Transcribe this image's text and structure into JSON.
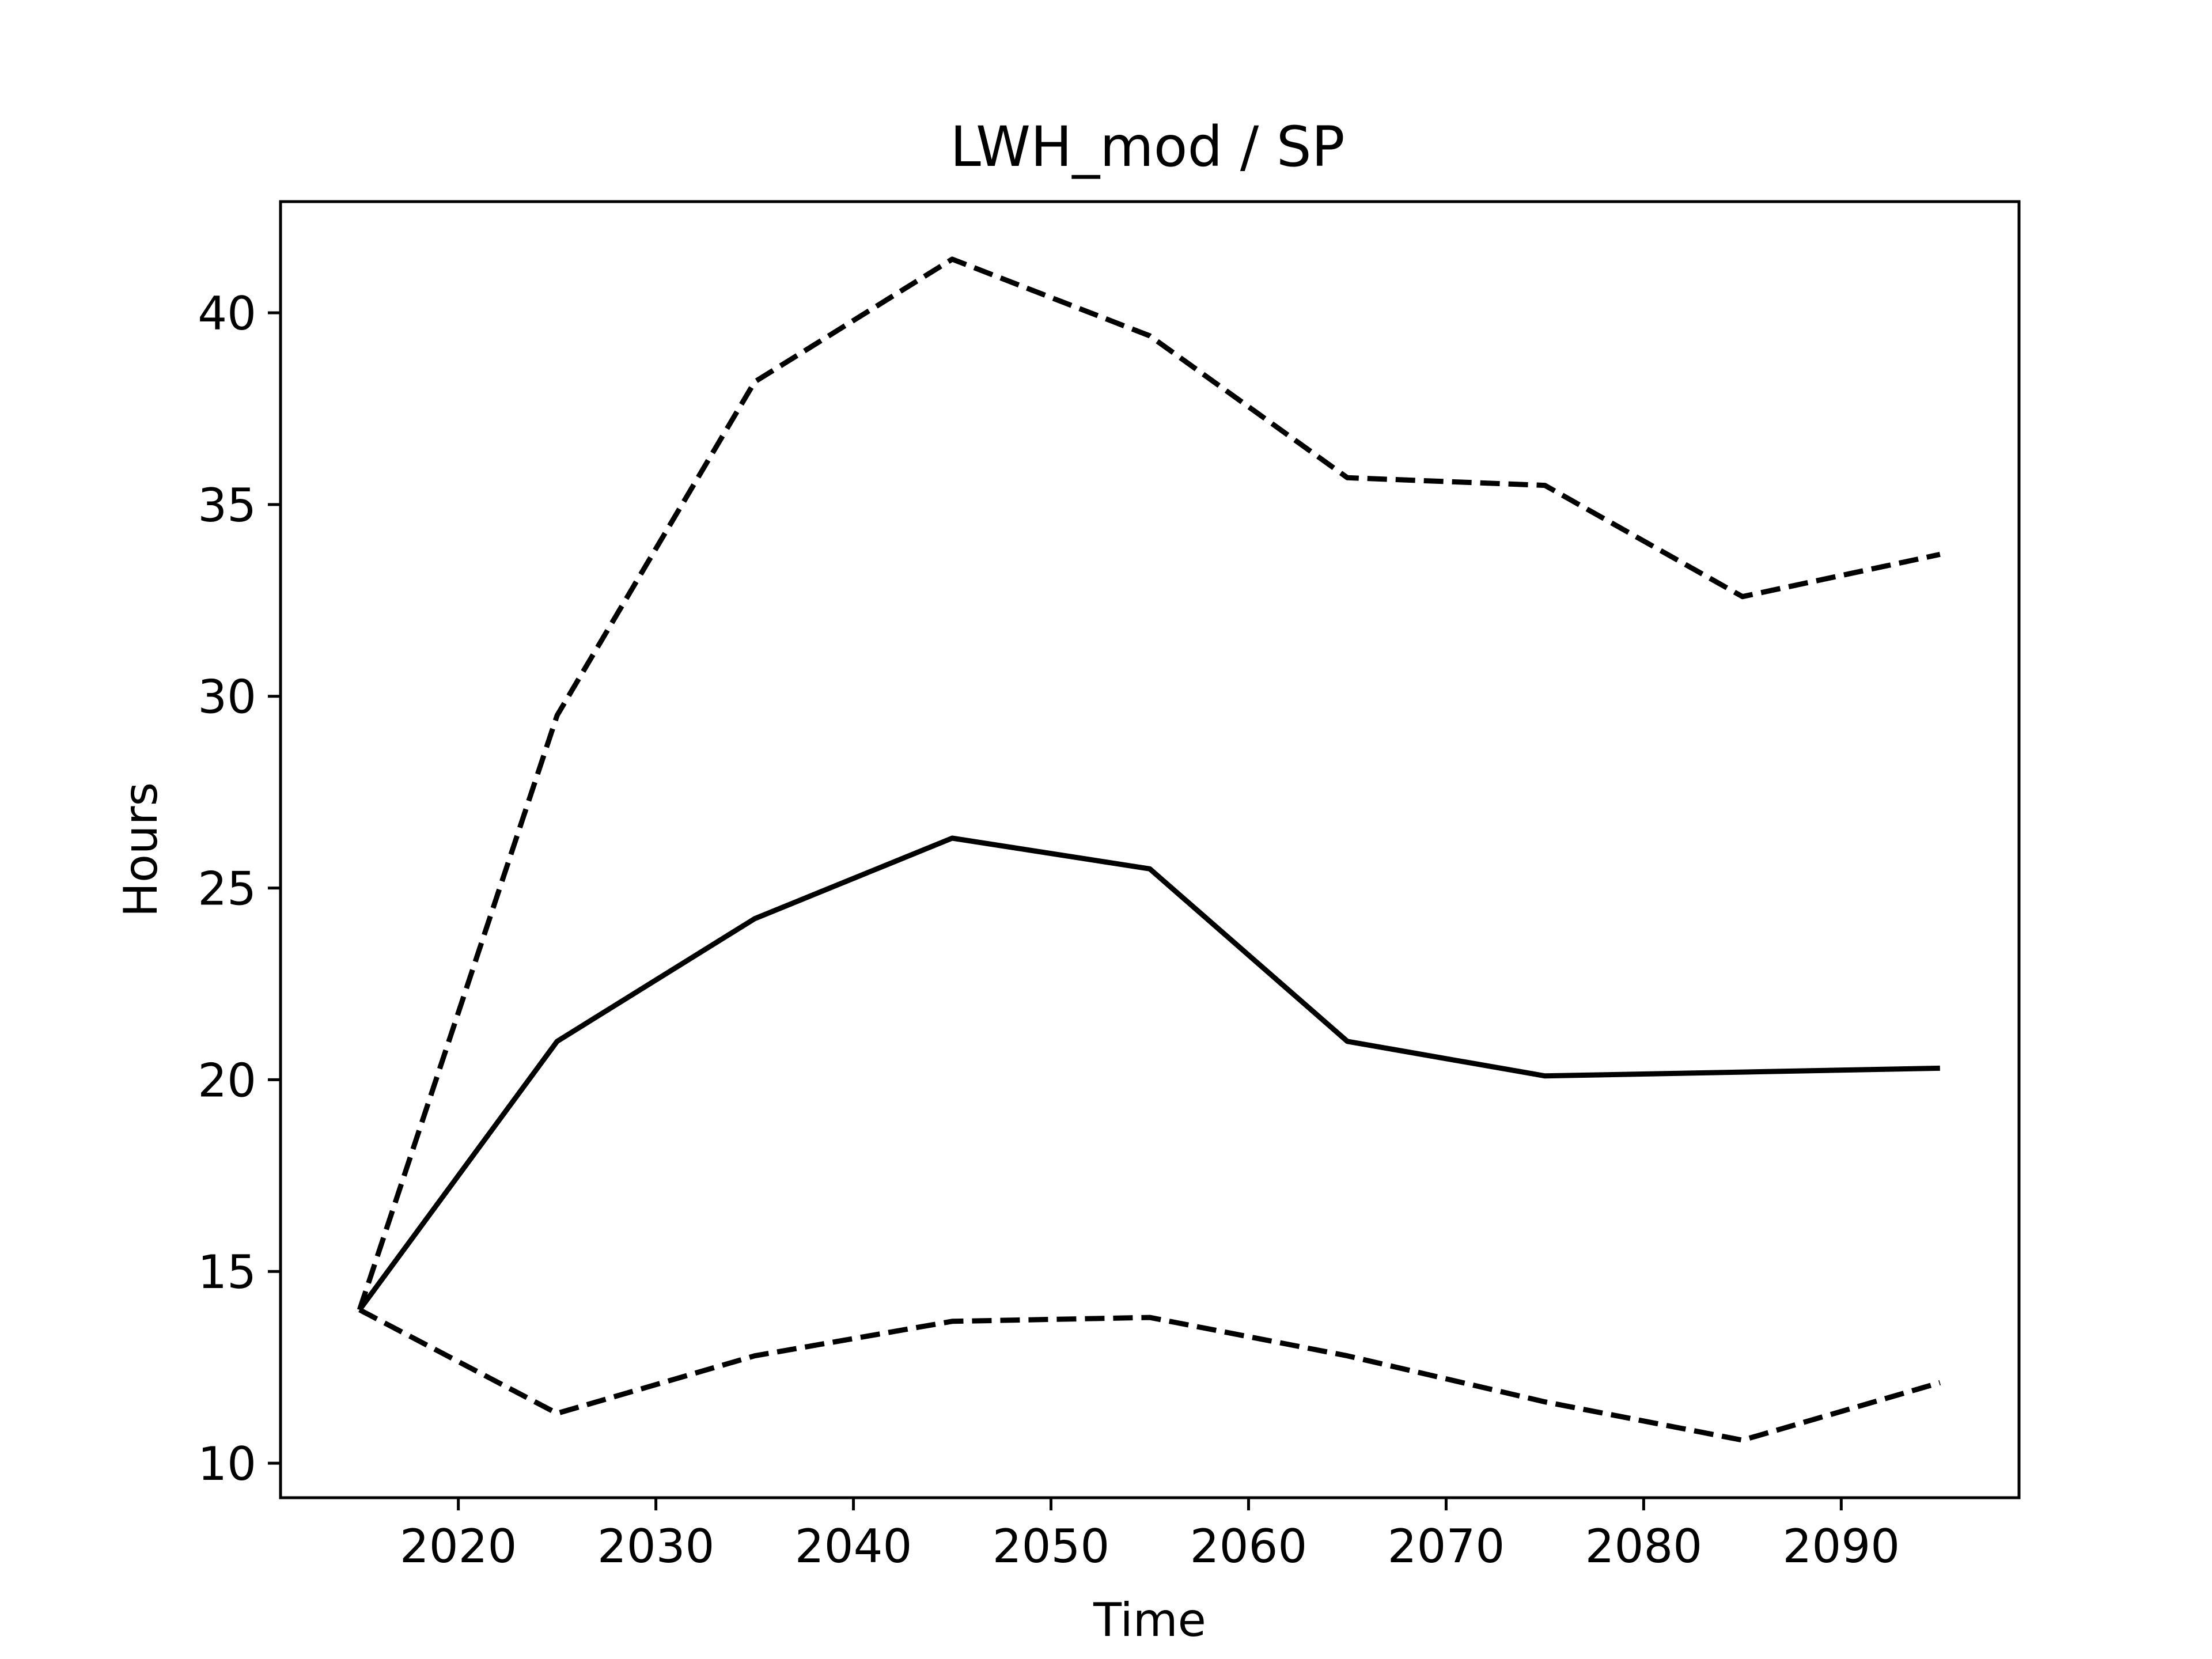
{
  "chart_data": {
    "type": "line",
    "title": "LWH_mod / SP",
    "xlabel": "Time",
    "ylabel": "Hours",
    "xlim": [
      2011,
      2099
    ],
    "ylim": [
      9.1,
      42.9
    ],
    "xticks": [
      2020,
      2030,
      2040,
      2050,
      2060,
      2070,
      2080,
      2090
    ],
    "yticks": [
      10,
      15,
      20,
      25,
      30,
      35,
      40
    ],
    "grid": false,
    "legend": "none",
    "line_color": "#000000",
    "x": [
      2015,
      2025,
      2035,
      2045,
      2055,
      2065,
      2075,
      2085,
      2095
    ],
    "series": [
      {
        "style": "dashed",
        "values": [
          14.0,
          29.5,
          38.2,
          41.4,
          39.4,
          35.7,
          35.5,
          32.6,
          33.7
        ]
      },
      {
        "style": "solid",
        "values": [
          14.0,
          21.0,
          24.2,
          26.3,
          25.5,
          21.0,
          20.1,
          20.2,
          20.3
        ]
      },
      {
        "style": "dashed",
        "values": [
          14.0,
          11.3,
          12.8,
          13.7,
          13.8,
          12.8,
          11.6,
          10.6,
          12.1
        ]
      }
    ]
  }
}
